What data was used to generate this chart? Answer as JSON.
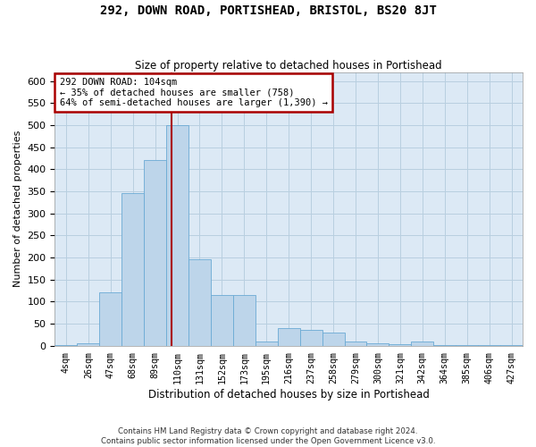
{
  "title": "292, DOWN ROAD, PORTISHEAD, BRISTOL, BS20 8JT",
  "subtitle": "Size of property relative to detached houses in Portishead",
  "xlabel": "Distribution of detached houses by size in Portishead",
  "ylabel": "Number of detached properties",
  "footer1": "Contains HM Land Registry data © Crown copyright and database right 2024.",
  "footer2": "Contains public sector information licensed under the Open Government Licence v3.0.",
  "annotation_title": "292 DOWN ROAD: 104sqm",
  "annotation_line1": "← 35% of detached houses are smaller (758)",
  "annotation_line2": "64% of semi-detached houses are larger (1,390) →",
  "bar_color": "#bdd5ea",
  "bar_edge_color": "#6aaad4",
  "ref_line_color": "#aa0000",
  "annotation_box_edge_color": "#aa0000",
  "plot_bg_color": "#dce9f5",
  "fig_bg_color": "#ffffff",
  "grid_color": "#b8cfe0",
  "categories": [
    "4sqm",
    "26sqm",
    "47sqm",
    "68sqm",
    "89sqm",
    "110sqm",
    "131sqm",
    "152sqm",
    "173sqm",
    "195sqm",
    "216sqm",
    "237sqm",
    "258sqm",
    "279sqm",
    "300sqm",
    "321sqm",
    "342sqm",
    "364sqm",
    "385sqm",
    "406sqm",
    "427sqm"
  ],
  "values": [
    2,
    5,
    120,
    345,
    420,
    500,
    195,
    115,
    115,
    10,
    40,
    35,
    30,
    10,
    5,
    3,
    10,
    2,
    2,
    2,
    2
  ],
  "ylim": [
    0,
    620
  ],
  "yticks": [
    0,
    50,
    100,
    150,
    200,
    250,
    300,
    350,
    400,
    450,
    500,
    550,
    600
  ],
  "ref_line_x": 4.72
}
